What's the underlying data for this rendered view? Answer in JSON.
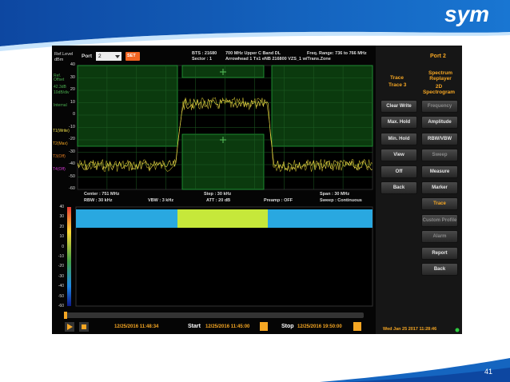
{
  "slide": {
    "logo": "sym",
    "page_number": "41"
  },
  "screen": {
    "top_bar": {
      "ref_level": "Ref.Level",
      "ref_unit": "dBm",
      "port_label": "Port",
      "port_value": "2",
      "set_button": "SET",
      "bts": "BTS : 21680",
      "band": "700 MHz Upper C Band DL",
      "sector": "Sector : 1",
      "site": "Arrowhead 1 Tx1 eNB 216800 VZS_1 w/Trans.Zone",
      "freq_range": "Freq. Range: 736 to 766 MHz"
    },
    "spectrum": {
      "y_labels": [
        "40",
        "30",
        "20",
        "10",
        "0",
        "-10",
        "-20",
        "-30",
        "-40",
        "-50",
        "-60"
      ],
      "ref_offset_label": "Ref. Offset",
      "ref_offset": "42.3dB",
      "scale": "10dB/div",
      "attenuator": "Internal",
      "traces": [
        "T1(Write)",
        "T2(Max)",
        "T3(Off)",
        "T4(Off)"
      ]
    },
    "settings": {
      "center": "Center : 751 MHz",
      "rbw": "RBW : 30 kHz",
      "vbw": "VBW : 3 kHz",
      "step": "Step : 30 kHz",
      "att": "ATT : 20 dB",
      "preamp": "Preamp : OFF",
      "span": "Span : 30 MHz",
      "sweep": "Sweep : Continuous"
    },
    "spectrogram": {
      "y_labels": [
        "40",
        "30",
        "20",
        "10",
        "0",
        "-10",
        "-20",
        "-30",
        "-40",
        "-50",
        "-60"
      ]
    },
    "playback": {
      "current": "12/25/2016 11:48:34",
      "start_label": "Start",
      "start": "12/25/2016 11:45:00",
      "stop_label": "Stop",
      "stop": "12/25/2016 19:50:00"
    },
    "side_panel": {
      "port": "Port 2",
      "trace_label": "Trace",
      "trace_value": "Trace 3",
      "mode_top": "Spectrum Replayer",
      "mode_bottom": "2D Spectrogram",
      "left_buttons": [
        "Clear Write",
        "Max. Hold",
        "Min. Hold",
        "View",
        "Off",
        "Back"
      ],
      "right_buttons": [
        "Frequency",
        "Amplitude",
        "RBW/VBW",
        "Sweep",
        "Measure",
        "Marker",
        "Trace",
        "Custom Profile",
        "Alarm",
        "Report",
        "Back"
      ]
    },
    "clock": "Wed Jan 25 2017 11:28:46"
  }
}
